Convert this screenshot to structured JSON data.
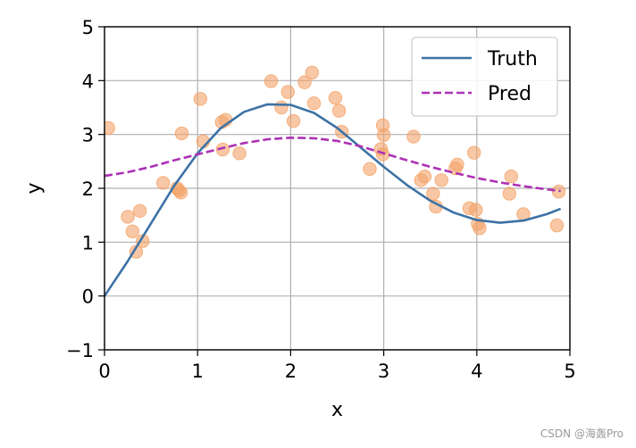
{
  "chart_data": {
    "type": "line",
    "xlabel": "x",
    "ylabel": "y",
    "xlim": [
      0,
      5
    ],
    "ylim": [
      -1,
      5
    ],
    "xticks": [
      0,
      1,
      2,
      3,
      4,
      5
    ],
    "yticks": [
      -1,
      0,
      1,
      2,
      3,
      4,
      5
    ],
    "grid": true,
    "legend_position": "top-right",
    "series": [
      {
        "name": "Truth",
        "style": "solid",
        "color": "#3d72a6",
        "x": [
          0.0,
          0.25,
          0.5,
          0.75,
          1.0,
          1.25,
          1.5,
          1.75,
          2.0,
          2.25,
          2.5,
          2.75,
          3.0,
          3.25,
          3.5,
          3.75,
          4.0,
          4.25,
          4.5,
          4.75,
          4.9
        ],
        "y": [
          0.0,
          0.65,
          1.35,
          2.05,
          2.65,
          3.12,
          3.42,
          3.56,
          3.55,
          3.4,
          3.12,
          2.76,
          2.4,
          2.06,
          1.77,
          1.55,
          1.41,
          1.36,
          1.4,
          1.52,
          1.62
        ]
      },
      {
        "name": "Pred",
        "style": "dashed",
        "color": "#ac32b4",
        "x": [
          0.0,
          0.25,
          0.5,
          0.75,
          1.0,
          1.25,
          1.5,
          1.75,
          2.0,
          2.25,
          2.5,
          2.75,
          3.0,
          3.25,
          3.5,
          3.75,
          4.0,
          4.25,
          4.5,
          4.75,
          4.9
        ],
        "y": [
          2.23,
          2.3,
          2.4,
          2.52,
          2.63,
          2.74,
          2.84,
          2.91,
          2.94,
          2.93,
          2.88,
          2.78,
          2.65,
          2.52,
          2.4,
          2.29,
          2.19,
          2.11,
          2.04,
          1.98,
          1.95
        ]
      }
    ],
    "scatter": {
      "color": "#f4a46a",
      "points": [
        [
          0.04,
          3.12
        ],
        [
          0.25,
          1.47
        ],
        [
          0.3,
          1.2
        ],
        [
          0.34,
          0.82
        ],
        [
          0.38,
          1.58
        ],
        [
          0.41,
          1.02
        ],
        [
          0.63,
          2.1
        ],
        [
          0.78,
          2.0
        ],
        [
          0.8,
          1.96
        ],
        [
          0.82,
          1.92
        ],
        [
          0.83,
          3.02
        ],
        [
          1.03,
          3.66
        ],
        [
          1.06,
          2.87
        ],
        [
          1.26,
          3.23
        ],
        [
          1.27,
          2.72
        ],
        [
          1.3,
          3.27
        ],
        [
          1.45,
          2.65
        ],
        [
          1.79,
          3.99
        ],
        [
          1.9,
          3.5
        ],
        [
          1.97,
          3.79
        ],
        [
          2.03,
          3.25
        ],
        [
          2.15,
          3.97
        ],
        [
          2.23,
          4.15
        ],
        [
          2.25,
          3.58
        ],
        [
          2.48,
          3.68
        ],
        [
          2.52,
          3.44
        ],
        [
          2.55,
          3.05
        ],
        [
          2.85,
          2.36
        ],
        [
          2.97,
          2.73
        ],
        [
          2.99,
          2.63
        ],
        [
          2.99,
          3.17
        ],
        [
          3.0,
          2.99
        ],
        [
          3.32,
          2.96
        ],
        [
          3.4,
          2.15
        ],
        [
          3.44,
          2.22
        ],
        [
          3.53,
          1.9
        ],
        [
          3.56,
          1.66
        ],
        [
          3.62,
          2.15
        ],
        [
          3.77,
          2.37
        ],
        [
          3.79,
          2.44
        ],
        [
          3.92,
          1.63
        ],
        [
          3.97,
          2.66
        ],
        [
          3.99,
          1.6
        ],
        [
          4.01,
          1.34
        ],
        [
          4.03,
          1.26
        ],
        [
          4.35,
          1.9
        ],
        [
          4.37,
          2.22
        ],
        [
          4.5,
          1.52
        ],
        [
          4.86,
          1.31
        ],
        [
          4.88,
          1.94
        ]
      ]
    }
  },
  "watermark": "CSDN @海轰Pro"
}
